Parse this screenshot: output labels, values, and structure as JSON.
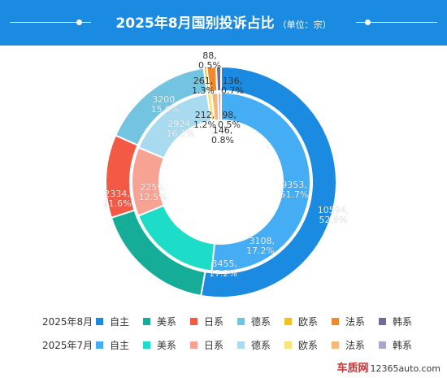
{
  "header": {
    "title": "2025年8月国别投诉占比",
    "unit": "（单位：宗）"
  },
  "chart_data": {
    "type": "pie",
    "title": "2025年8月国别投诉占比",
    "subtitle": "（单位：宗）",
    "categories": [
      "自主",
      "美系",
      "日系",
      "德系",
      "欧系",
      "法系",
      "韩系"
    ],
    "series": [
      {
        "name": "2025年8月",
        "ring": "outer",
        "values": [
          10594,
          3455,
          2334,
          3200,
          88,
          261,
          136
        ],
        "percent_labels": [
          "52.8%",
          "17.2%",
          "11.6%",
          "15.9%",
          "0.5%",
          "1.3%",
          "0.7%"
        ],
        "colors": [
          "#1a8be0",
          "#15ad98",
          "#f25a45",
          "#72c4e0",
          "#f2c21c",
          "#ef8a2c",
          "#6f6c9a"
        ]
      },
      {
        "name": "2025年7月",
        "ring": "inner",
        "values": [
          9353,
          3108,
          2259,
          2924,
          146,
          212,
          98
        ],
        "percent_labels": [
          "51.7%",
          "17.2%",
          "12.5%",
          "16.1%",
          "0.8%",
          "1.2%",
          "0.5%"
        ],
        "colors": [
          "#45adf4",
          "#1dddc8",
          "#f7a393",
          "#a8dbef",
          "#f7e37a",
          "#f7b77a",
          "#a9a6cd"
        ]
      }
    ],
    "legend_position": "bottom"
  },
  "legend": {
    "rows": [
      {
        "label": "2025年8月",
        "items": [
          "自主",
          "美系",
          "日系",
          "德系",
          "欧系",
          "法系",
          "韩系"
        ]
      },
      {
        "label": "2025年7月",
        "items": [
          "自主",
          "美系",
          "日系",
          "德系",
          "欧系",
          "法系",
          "韩系"
        ]
      }
    ]
  },
  "watermark": {
    "brand": "车质网",
    "url": "12365auto.com"
  }
}
